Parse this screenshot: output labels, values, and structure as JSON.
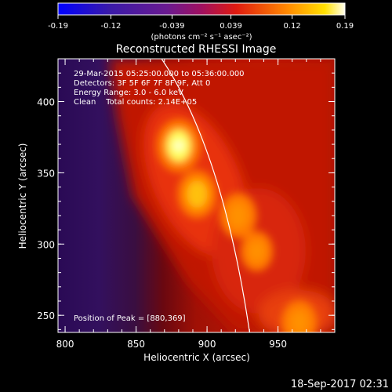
{
  "chart_data": {
    "type": "heatmap",
    "title": "Reconstructed RHESSI Image",
    "xlabel": "Heliocentric X (arcsec)",
    "ylabel": "Heliocentric Y (arcsec)",
    "xlim": [
      795,
      990
    ],
    "ylim": [
      238,
      430
    ],
    "xticks": [
      "800",
      "850",
      "900",
      "950"
    ],
    "yticks": [
      "250",
      "300",
      "350",
      "400"
    ],
    "colorbar": {
      "ticks": [
        "-0.19",
        "-0.12",
        "-0.039",
        "0.039",
        "0.12",
        "0.19"
      ],
      "range": [
        -0.19,
        0.19
      ],
      "unit_label": "(photons cm⁻² s⁻¹ asec⁻²)"
    },
    "annotations": [
      "29-Mar-2015 05:25:00.000 to 05:36:00.000",
      "Detectors: 3F 5F 6F 7F 8F 9F, Att 0",
      "Energy Range: 3.0 - 6.0 keV",
      "Clean    Total counts: 2.14E+05"
    ],
    "peak_label": "Position of Peak = [880,369]",
    "peak": [
      880,
      369
    ],
    "sources": [
      {
        "x": 880,
        "y": 369,
        "value": 0.19
      },
      {
        "x": 893,
        "y": 335,
        "value": 0.15
      },
      {
        "x": 922,
        "y": 320,
        "value": 0.13
      },
      {
        "x": 935,
        "y": 295,
        "value": 0.09
      },
      {
        "x": 965,
        "y": 245,
        "value": 0.12
      }
    ],
    "limb_curve": [
      [
        868,
        430
      ],
      [
        905,
        350
      ],
      [
        930,
        238
      ]
    ]
  },
  "footer": {
    "date": "18-Sep-2017 02:31"
  }
}
